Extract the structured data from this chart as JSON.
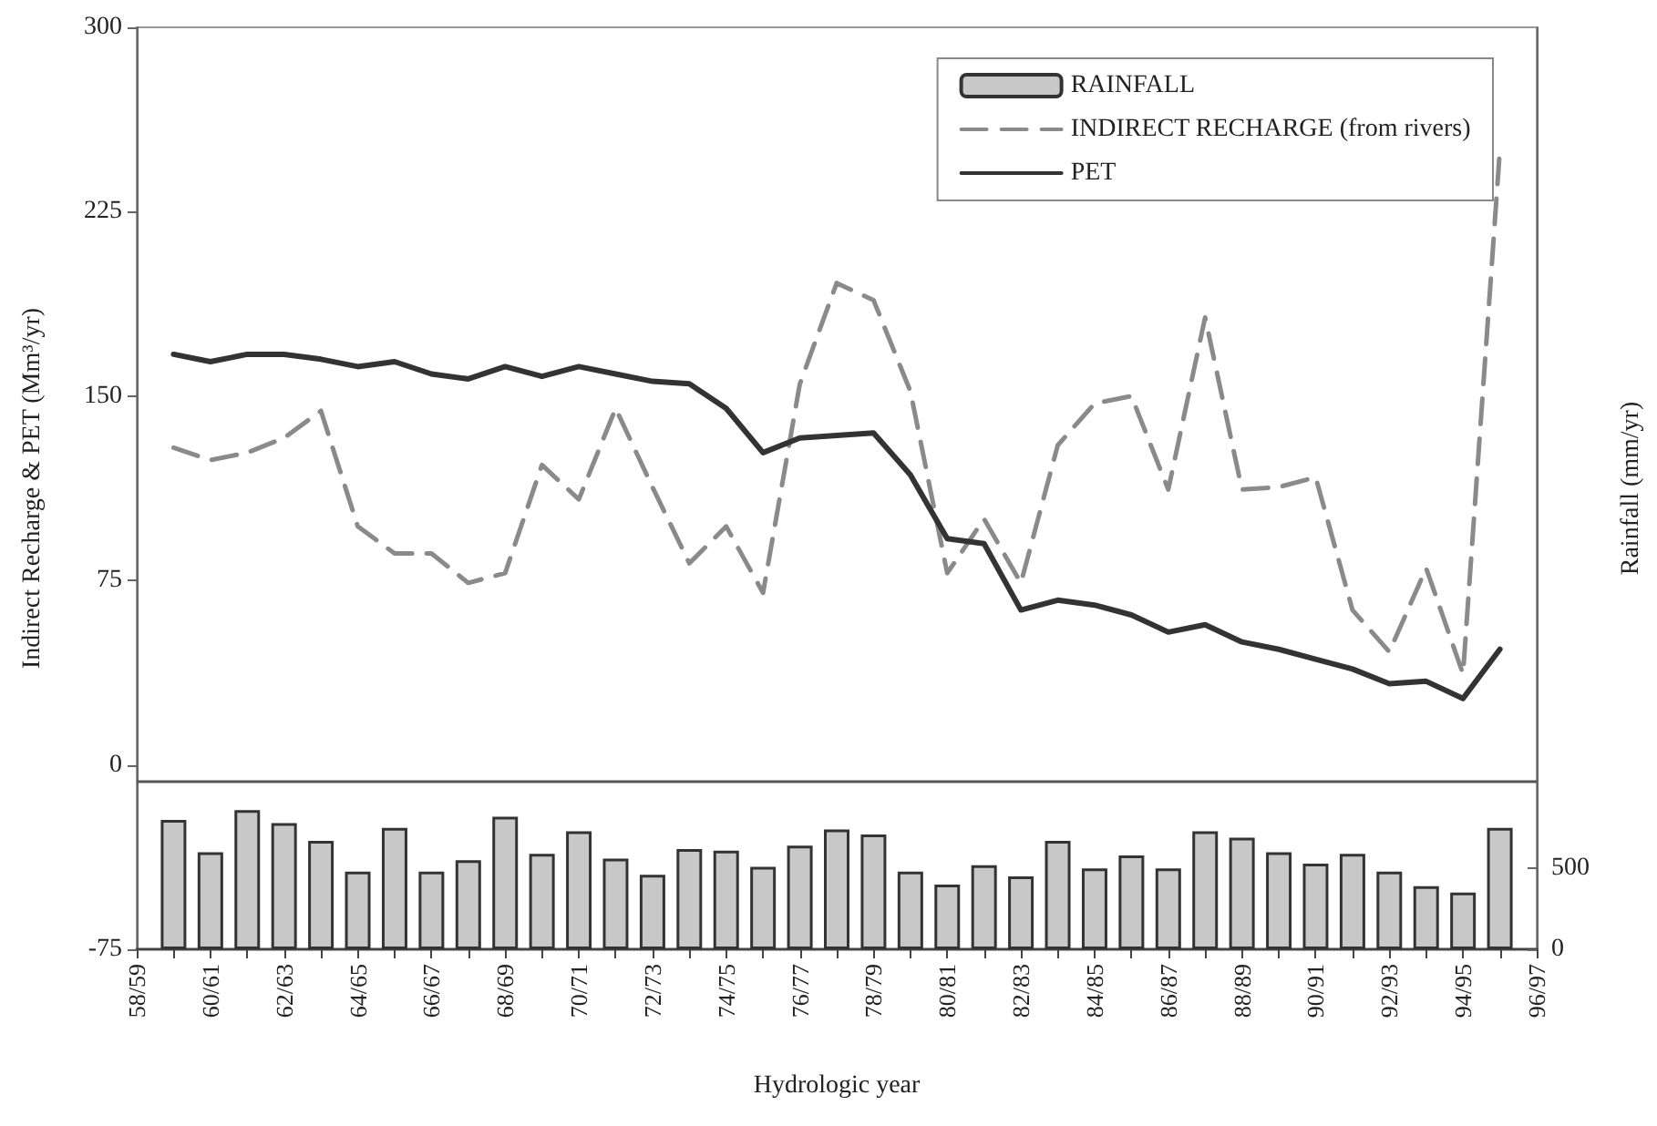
{
  "chart_data": {
    "type": "line",
    "xlabel": "Hydrologic year",
    "ylabel": "Indirect Recharge & PET (Mm³/yr)",
    "y2label": "Rainfall (mm/yr)",
    "categories": [
      "58/59",
      null,
      "60/61",
      null,
      "62/63",
      null,
      "64/65",
      null,
      "66/67",
      null,
      "68/69",
      null,
      "70/71",
      null,
      "72/73",
      null,
      "74/75",
      null,
      "76/77",
      null,
      "78/79",
      null,
      "80/81",
      null,
      "82/83",
      null,
      "84/85",
      null,
      "86/87",
      null,
      "88/89",
      null,
      "90/91",
      null,
      "92/93",
      null,
      "94/95",
      null,
      "96/97"
    ],
    "series": [
      {
        "name": "RAINFALL",
        "type": "bar",
        "axis": "y2",
        "color": "#c8c8c8",
        "values": [
          null,
          800,
          600,
          860,
          780,
          670,
          480,
          750,
          480,
          550,
          820,
          590,
          730,
          560,
          460,
          620,
          610,
          510,
          640,
          740,
          710,
          480,
          400,
          520,
          450,
          670,
          500,
          580,
          500,
          730,
          690,
          600,
          530,
          590,
          480,
          390,
          350,
          750,
          null
        ]
      },
      {
        "name": "INDIRECT RECHARGE (from rivers)",
        "line_style": "dashed",
        "color": "#8a8a8a",
        "values": [
          null,
          129,
          124,
          127,
          133,
          144,
          97,
          86,
          86,
          74,
          78,
          122,
          108,
          145,
          113,
          82,
          97,
          70,
          155,
          196,
          189,
          152,
          78,
          100,
          74,
          130,
          147,
          150,
          112,
          182,
          112,
          113,
          117,
          63,
          46,
          80,
          37,
          250,
          null
        ]
      },
      {
        "name": "PET",
        "line_style": "solid",
        "color": "#333333",
        "values": [
          null,
          167,
          164,
          167,
          167,
          165,
          162,
          164,
          159,
          157,
          162,
          158,
          162,
          159,
          156,
          155,
          145,
          127,
          133,
          134,
          135,
          118,
          92,
          90,
          63,
          67,
          65,
          61,
          54,
          57,
          50,
          47,
          43,
          39,
          33,
          34,
          27,
          47,
          null
        ]
      }
    ],
    "ylim": [
      -75,
      300
    ],
    "yticks": [
      -75,
      0,
      75,
      150,
      225,
      300
    ],
    "y2lim": [
      0,
      5700
    ],
    "y2ticks": [
      0,
      500
    ],
    "ref_lines": [
      {
        "axis": "y",
        "value": -7,
        "color": "#555555"
      }
    ],
    "marker": "none",
    "grid": false,
    "legend": "top right"
  }
}
